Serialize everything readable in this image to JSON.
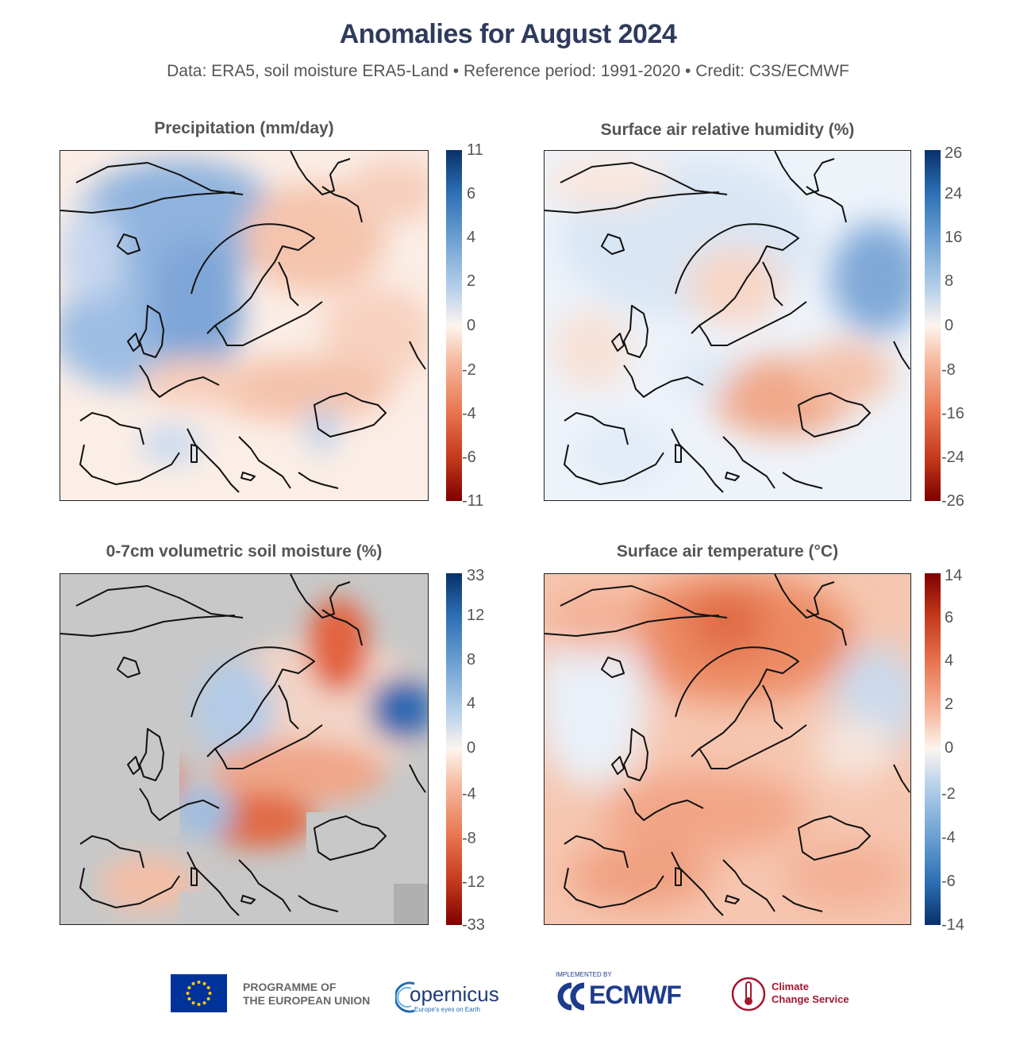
{
  "header": {
    "title": "Anomalies for August 2024",
    "subtitle": "Data: ERA5, soil moisture ERA5-Land • Reference period: 1991-2020 • Credit: C3S/ECMWF"
  },
  "panels": [
    {
      "title": "Precipitation (mm/day)",
      "colormap": "red-blue (blue = wetter)",
      "colors": {
        "high": "#08306b",
        "zero": "#fdf5ef",
        "low": "#7f0000"
      },
      "ticks": [
        "11",
        "6",
        "4",
        "2",
        "0",
        "-2",
        "-4",
        "-6",
        "-11"
      ]
    },
    {
      "title": "Surface air relative humidity (%)",
      "colormap": "red-blue (blue = more humid)",
      "colors": {
        "high": "#08306b",
        "zero": "#fdf5ef",
        "low": "#7f0000"
      },
      "ticks": [
        "26",
        "24",
        "16",
        "8",
        "0",
        "-8",
        "-16",
        "-24",
        "-26"
      ]
    },
    {
      "title": "0-7cm volumetric soil moisture (%)",
      "colormap": "red-blue (blue = wetter), sea masked grey",
      "colors": {
        "high": "#08306b",
        "zero": "#fdf5ef",
        "low": "#7f0000",
        "mask": "#c8c8c8"
      },
      "ticks": [
        "33",
        "12",
        "8",
        "4",
        "0",
        "-4",
        "-8",
        "-12",
        "-33"
      ]
    },
    {
      "title": "Surface air temperature (°C)",
      "colormap": "blue-red (red = warmer)",
      "colors": {
        "high": "#7f0000",
        "zero": "#fdf5ef",
        "low": "#08306b"
      },
      "ticks": [
        "14",
        "6",
        "4",
        "2",
        "0",
        "-2",
        "-4",
        "-6",
        "-14"
      ]
    }
  ],
  "footer": {
    "eu_line1": "PROGRAMME OF",
    "eu_line2": "THE EUROPEAN UNION",
    "copernicus": "opernicus",
    "copernicus_tagline": "Europe's eyes on Earth",
    "implemented_by": "IMPLEMENTED BY",
    "ecmwf": "ECMWF",
    "c3s_line1": "Climate",
    "c3s_line2": "Change Service"
  }
}
